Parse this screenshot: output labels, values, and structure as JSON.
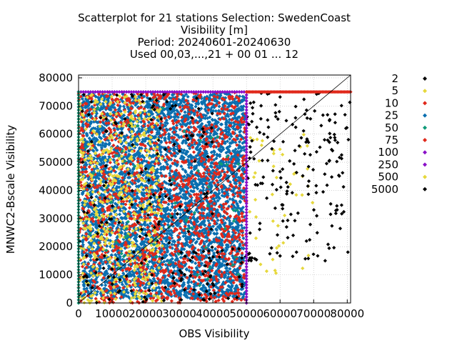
{
  "chart_data": {
    "type": "scatter",
    "title_lines": [
      "Scatterplot for   21 stations Selection: SwedenCoast",
      "Visibility [m]",
      "Period: 20240601-20240630",
      "Used 00,03,...,21 + 00 01 ... 12"
    ],
    "xlabel": "OBS Visibility",
    "ylabel": "MNWC2-Bscale Visibility",
    "xlim": [
      0,
      81000
    ],
    "ylim": [
      0,
      81000
    ],
    "xticks": [
      0,
      10000,
      20000,
      30000,
      40000,
      50000,
      60000,
      70000,
      80000
    ],
    "yticks": [
      0,
      10000,
      20000,
      30000,
      40000,
      50000,
      60000,
      70000,
      80000
    ],
    "grid": true,
    "diagonal": true,
    "legend_position": "right",
    "legend": [
      {
        "label": "2",
        "color": "#000000"
      },
      {
        "label": "5",
        "color": "#e6d83c"
      },
      {
        "label": "10",
        "color": "#e0281a"
      },
      {
        "label": "25",
        "color": "#0a6fb0"
      },
      {
        "label": "50",
        "color": "#0f9a78"
      },
      {
        "label": "75",
        "color": "#e0281a"
      },
      {
        "label": "100",
        "color": "#8a10c8"
      },
      {
        "label": "250",
        "color": "#8a10c8"
      },
      {
        "label": "500",
        "color": "#e6d83c"
      },
      {
        "label": "5000",
        "color": "#000000"
      }
    ],
    "regions": [
      {
        "series": "25",
        "x": [
          1000,
          49500
        ],
        "y": [
          1500,
          74500
        ],
        "density": 0.0012
      },
      {
        "series": "10",
        "x": [
          0,
          50000
        ],
        "y": [
          0,
          75000
        ],
        "density": 0.00035
      },
      {
        "series": "5",
        "x": [
          0,
          25000
        ],
        "y": [
          0,
          75000
        ],
        "density": 0.00025
      },
      {
        "series": "2",
        "x": [
          0,
          40000
        ],
        "y": [
          0,
          75000
        ],
        "density": 5e-05
      },
      {
        "series": "50",
        "x": [
          2000,
          48000
        ],
        "y": [
          5000,
          70000
        ],
        "density": 2e-05
      },
      {
        "series": "500",
        "x": [
          50000,
          70000
        ],
        "y": [
          10000,
          60000
        ],
        "density": 4e-05
      },
      {
        "series": "5000",
        "x": [
          50000,
          81000
        ],
        "y": [
          15000,
          75000
        ],
        "density": 9e-05
      },
      {
        "series": "5000",
        "x": [
          30000,
          50000
        ],
        "y": [
          0,
          20000
        ],
        "density": 9e-05
      }
    ],
    "bands": [
      {
        "series": "100",
        "axis": "y",
        "value": 75000,
        "range": [
          0,
          50000
        ]
      },
      {
        "series": "100",
        "axis": "x",
        "value": 50000,
        "range": [
          0,
          75000
        ]
      },
      {
        "series": "10",
        "axis": "y",
        "value": 75000,
        "range": [
          50000,
          81000
        ]
      },
      {
        "series": "50",
        "axis": "x",
        "value": 0,
        "range": [
          0,
          75000
        ]
      }
    ]
  }
}
